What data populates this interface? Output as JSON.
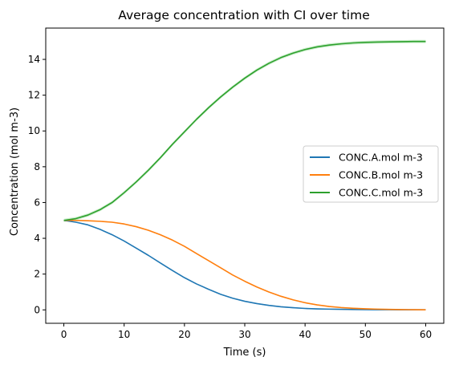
{
  "chart_data": {
    "type": "line",
    "title": "Average concentration with CI over time",
    "xlabel": "Time (s)",
    "ylabel": "Concentration (mol m-3)",
    "xlim": [
      -3,
      63
    ],
    "ylim": [
      -0.75,
      15.75
    ],
    "x_ticks": [
      0,
      10,
      20,
      30,
      40,
      50,
      60
    ],
    "y_ticks": [
      0,
      2,
      4,
      6,
      8,
      10,
      12,
      14
    ],
    "grid": false,
    "legend_position": "center-right",
    "x": [
      0,
      2,
      4,
      6,
      8,
      10,
      12,
      14,
      16,
      18,
      20,
      22,
      24,
      26,
      28,
      30,
      32,
      34,
      36,
      38,
      40,
      42,
      44,
      46,
      48,
      50,
      52,
      54,
      56,
      58,
      60
    ],
    "series": [
      {
        "name": "CONC.A.mol m-3",
        "color": "#1f77b4",
        "values": [
          5.0,
          4.9,
          4.75,
          4.5,
          4.2,
          3.85,
          3.45,
          3.05,
          2.62,
          2.2,
          1.8,
          1.45,
          1.15,
          0.87,
          0.65,
          0.48,
          0.35,
          0.25,
          0.17,
          0.12,
          0.08,
          0.055,
          0.04,
          0.03,
          0.02,
          0.015,
          0.01,
          0.008,
          0.005,
          0.003,
          0.002
        ],
        "ci_halfwidth": 0.03
      },
      {
        "name": "CONC.B.mol m-3",
        "color": "#ff7f0e",
        "values": [
          5.0,
          5.0,
          4.98,
          4.95,
          4.9,
          4.8,
          4.65,
          4.45,
          4.2,
          3.9,
          3.55,
          3.15,
          2.75,
          2.35,
          1.95,
          1.6,
          1.28,
          1.0,
          0.76,
          0.56,
          0.4,
          0.28,
          0.19,
          0.13,
          0.09,
          0.06,
          0.04,
          0.025,
          0.015,
          0.01,
          0.005
        ],
        "ci_halfwidth": 0.03
      },
      {
        "name": "CONC.C.mol m-3",
        "color": "#2ca02c",
        "ci_color": "#6fcf6f",
        "values": [
          5.0,
          5.1,
          5.3,
          5.6,
          6.0,
          6.55,
          7.15,
          7.8,
          8.5,
          9.25,
          9.95,
          10.65,
          11.3,
          11.9,
          12.45,
          12.95,
          13.4,
          13.78,
          14.1,
          14.35,
          14.55,
          14.7,
          14.8,
          14.87,
          14.92,
          14.95,
          14.97,
          14.98,
          14.99,
          15.0,
          15.0
        ],
        "ci_halfwidth": 0.09
      }
    ]
  }
}
